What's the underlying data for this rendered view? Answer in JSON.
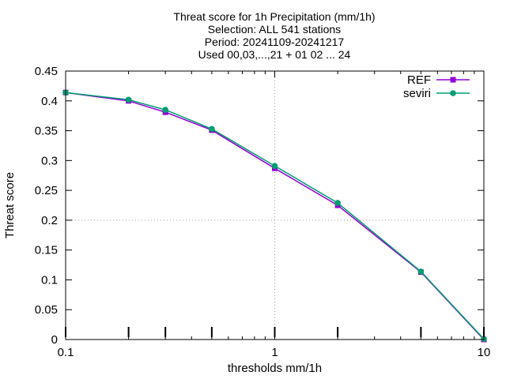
{
  "chart_data": {
    "type": "line",
    "title_lines": [
      "Threat score  for 1h Precipitation (mm/1h)",
      "Selection: ALL     541 stations",
      "Period: 20241109-20241217",
      "Used 00,03,...,21 + 01 02 ... 24"
    ],
    "xlabel": "thresholds mm/1h",
    "ylabel": "Threat score",
    "x_scale": "log",
    "xlim": [
      0.1,
      10
    ],
    "ylim": [
      0,
      0.45
    ],
    "x_ticks": [
      {
        "value": 0.1,
        "label": "0.1"
      },
      {
        "value": 1,
        "label": "1"
      },
      {
        "value": 10,
        "label": "10"
      }
    ],
    "y_ticks": [
      {
        "value": 0,
        "label": "0"
      },
      {
        "value": 0.05,
        "label": "0.05"
      },
      {
        "value": 0.1,
        "label": "0.1"
      },
      {
        "value": 0.15,
        "label": "0.15"
      },
      {
        "value": 0.2,
        "label": "0.2"
      },
      {
        "value": 0.25,
        "label": "0.25"
      },
      {
        "value": 0.3,
        "label": "0.3"
      },
      {
        "value": 0.35,
        "label": "0.35"
      },
      {
        "value": 0.4,
        "label": "0.4"
      },
      {
        "value": 0.45,
        "label": "0.45"
      }
    ],
    "grid": "dotted at x=1 and y=0.2",
    "legend_position": "top-right",
    "x": [
      0.1,
      0.2,
      0.3,
      0.5,
      1,
      2,
      5,
      10
    ],
    "series": [
      {
        "name": "REF",
        "color": "#9400d3",
        "marker": "filled-square",
        "values": [
          0.414,
          0.4,
          0.381,
          0.351,
          0.287,
          0.225,
          0.113,
          0.0
        ]
      },
      {
        "name": "seviri",
        "color": "#009e73",
        "marker": "filled-circle",
        "values": [
          0.414,
          0.402,
          0.385,
          0.353,
          0.291,
          0.229,
          0.114,
          0.001
        ]
      }
    ],
    "sample_count_markers_x": [
      0.1,
      0.2,
      0.3,
      0.5,
      1,
      2,
      5,
      10
    ]
  }
}
